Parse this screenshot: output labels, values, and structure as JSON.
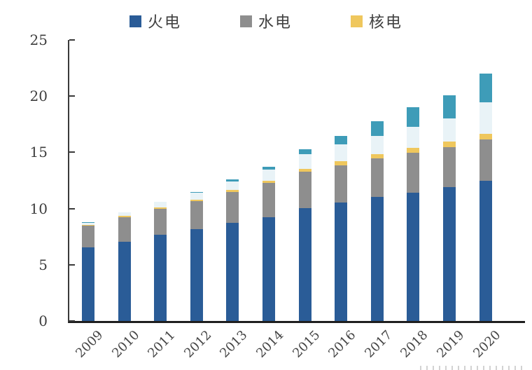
{
  "legend": {
    "items": [
      {
        "label": "火电"
      },
      {
        "label": "水电"
      },
      {
        "label": "核电"
      }
    ]
  },
  "chart_data": {
    "type": "bar",
    "stacked": true,
    "title": "",
    "xlabel": "",
    "ylabel": "",
    "ylim": [
      0,
      25
    ],
    "y_ticks": [
      0,
      5,
      10,
      15,
      20,
      25
    ],
    "grid": false,
    "legend_position": "top",
    "legend_visible_series": [
      "火电",
      "水电",
      "核电"
    ],
    "categories": [
      "2009",
      "2010",
      "2011",
      "2012",
      "2013",
      "2014",
      "2015",
      "2016",
      "2017",
      "2018",
      "2019",
      "2020"
    ],
    "series": [
      {
        "name": "火电",
        "in_legend": true,
        "color": "#2A5C97",
        "values": [
          6.52,
          7.07,
          7.65,
          8.19,
          8.7,
          9.23,
          10.06,
          10.54,
          11.06,
          11.44,
          11.9,
          12.45
        ]
      },
      {
        "name": "水电",
        "in_legend": true,
        "color": "#8E8E8E",
        "values": [
          1.96,
          2.16,
          2.33,
          2.49,
          2.8,
          3.05,
          3.2,
          3.32,
          3.41,
          3.53,
          3.56,
          3.7
        ]
      },
      {
        "name": "核电",
        "in_legend": true,
        "color": "#EFC75D",
        "values": [
          0.09,
          0.11,
          0.13,
          0.13,
          0.15,
          0.2,
          0.27,
          0.34,
          0.36,
          0.45,
          0.49,
          0.5
        ]
      },
      {
        "name": "unlabeled_light_blue_series",
        "in_legend": false,
        "color": "#E9F3F7",
        "values": [
          0.18,
          0.31,
          0.46,
          0.61,
          0.77,
          0.96,
          1.31,
          1.49,
          1.64,
          1.84,
          2.1,
          2.82
        ]
      },
      {
        "name": "unlabeled_teal_series",
        "in_legend": false,
        "color": "#3E9CB8",
        "values": [
          0.02,
          0.02,
          0.02,
          0.03,
          0.16,
          0.28,
          0.43,
          0.78,
          1.3,
          1.75,
          2.05,
          2.53
        ]
      }
    ]
  },
  "colors": {
    "axis_line": "#3a3a3a",
    "baseline": "#1f1f1f",
    "tick_label": "#3d3d3d",
    "legend_text": "#404040",
    "background": "#ffffff"
  }
}
